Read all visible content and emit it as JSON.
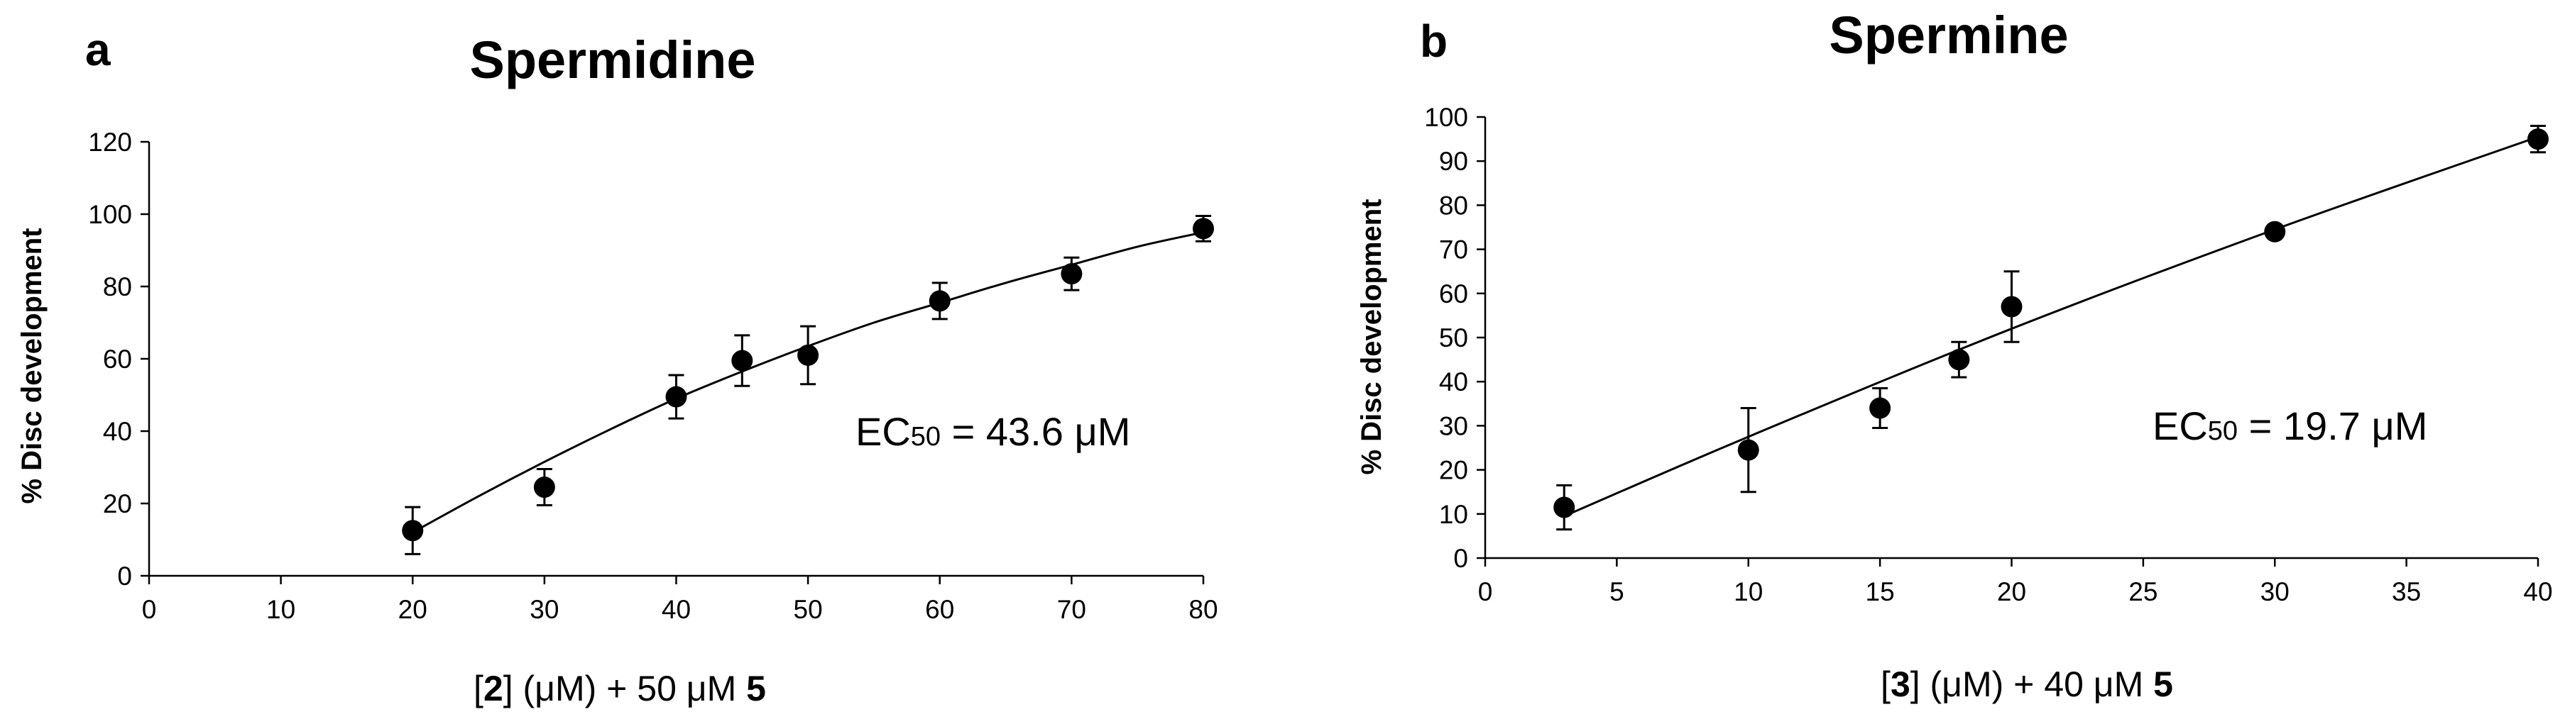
{
  "chart_data": [
    {
      "type": "scatter",
      "panel_label": "a",
      "title": "Spermidine",
      "ylabel": "% Disc development",
      "xlabel_parts": [
        "[",
        "2",
        "] (μM) + 50 μM ",
        "5"
      ],
      "xlim": [
        0,
        80
      ],
      "ylim": [
        0,
        120
      ],
      "xticks": [
        0,
        10,
        20,
        30,
        40,
        50,
        60,
        70,
        80
      ],
      "yticks": [
        0,
        20,
        40,
        60,
        80,
        100,
        120
      ],
      "x": [
        20,
        30,
        40,
        45,
        50,
        60,
        70,
        80
      ],
      "y": [
        12.5,
        24.5,
        49.5,
        59.5,
        61,
        76,
        83.5,
        96
      ],
      "error": [
        6.5,
        5,
        6,
        7,
        8,
        5,
        4.5,
        3.5
      ],
      "fit_curve": {
        "x": [
          20,
          25,
          30,
          35,
          40,
          45,
          50,
          55,
          60,
          65,
          70,
          75,
          80
        ],
        "y": [
          12,
          22,
          31.5,
          40.5,
          49,
          56.5,
          63.5,
          70,
          75.5,
          81,
          86,
          91,
          95
        ]
      },
      "annotation": {
        "prefix": "EC",
        "subscript": "50",
        "suffix": " = 43.6 μM"
      }
    },
    {
      "type": "scatter",
      "panel_label": "b",
      "title": "Spermine",
      "ylabel": "% Disc development",
      "xlabel_parts": [
        "[",
        "3",
        "] (μM) + 40 μM ",
        "5"
      ],
      "xlim": [
        0,
        40
      ],
      "ylim": [
        0,
        100
      ],
      "xticks": [
        0,
        5,
        10,
        15,
        20,
        25,
        30,
        35,
        40
      ],
      "yticks": [
        0,
        10,
        20,
        30,
        40,
        50,
        60,
        70,
        80,
        90,
        100
      ],
      "x": [
        3,
        10,
        15,
        18,
        20,
        30,
        40
      ],
      "y": [
        11.5,
        24.5,
        34,
        45,
        57,
        74,
        95
      ],
      "error": [
        5,
        9.5,
        4.5,
        4,
        8,
        0,
        3
      ],
      "fit_curve": {
        "x": [
          3,
          10,
          20,
          30,
          40
        ],
        "y": [
          9.5,
          27.5,
          52,
          74.5,
          95.5
        ]
      },
      "annotation": {
        "prefix": "EC",
        "subscript": "50",
        "suffix": " = 19.7 μM"
      }
    }
  ]
}
